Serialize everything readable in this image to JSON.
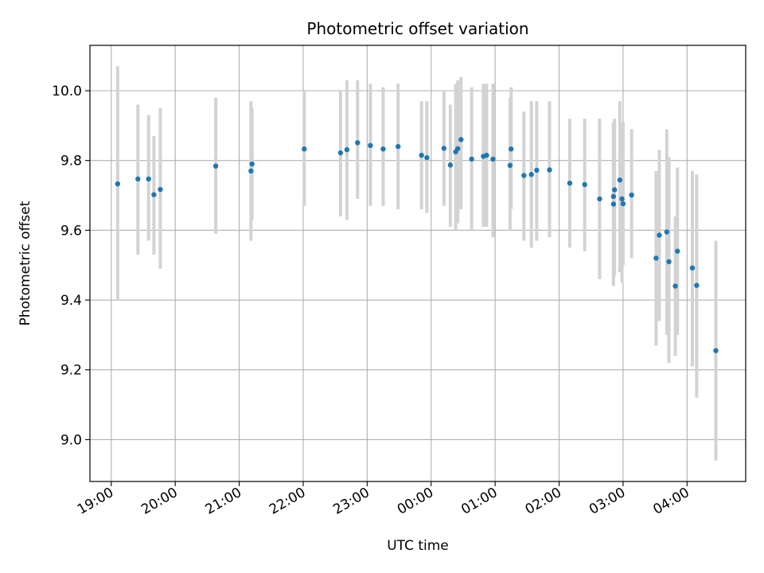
{
  "chart_data": {
    "type": "scatter",
    "title": "Photometric offset variation",
    "xlabel": "UTC time",
    "ylabel": "Photometric offset",
    "grid": true,
    "x_tick_labels": [
      "19:00",
      "20:00",
      "21:00",
      "22:00",
      "23:00",
      "00:00",
      "01:00",
      "02:00",
      "03:00",
      "04:00"
    ],
    "y_tick_labels": [
      "9.0",
      "9.2",
      "9.4",
      "9.6",
      "9.8",
      "10.0"
    ],
    "y_ticks": [
      9.0,
      9.2,
      9.4,
      9.6,
      9.8,
      10.0
    ],
    "xlim": [
      "18:40",
      "04:55"
    ],
    "ylim": [
      8.88,
      10.13
    ],
    "colors": {
      "points": "#1f77b4",
      "error_bars": "#d3d3d3",
      "grid": "#b0b0b0"
    },
    "series": [
      {
        "x": [
          "19:06",
          "19:25",
          "19:35",
          "19:40",
          "19:46",
          "20:38",
          "21:11",
          "21:12",
          "22:01",
          "22:35",
          "22:41",
          "22:51",
          "23:03",
          "23:15",
          "23:29",
          "23:51",
          "23:56",
          "00:12",
          "00:18",
          "00:23",
          "00:25",
          "00:28",
          "00:38",
          "00:49",
          "00:52",
          "00:58",
          "01:14",
          "01:15",
          "01:27",
          "01:34",
          "01:39",
          "01:51",
          "02:10",
          "02:24",
          "02:38",
          "02:51",
          "02:51",
          "02:52",
          "02:57",
          "02:59",
          "03:00",
          "03:08",
          "03:31",
          "03:34",
          "03:41",
          "03:43",
          "03:49",
          "03:51",
          "04:05",
          "04:09",
          "04:27"
        ],
        "y": [
          9.733,
          9.747,
          9.747,
          9.702,
          9.717,
          9.784,
          9.77,
          9.79,
          9.833,
          9.822,
          9.831,
          9.851,
          9.843,
          9.833,
          9.84,
          9.815,
          9.808,
          9.835,
          9.787,
          9.825,
          9.834,
          9.86,
          9.804,
          9.812,
          9.815,
          9.804,
          9.786,
          9.833,
          9.757,
          9.76,
          9.772,
          9.773,
          9.735,
          9.731,
          9.69,
          9.675,
          9.697,
          9.716,
          9.744,
          9.69,
          9.676,
          9.701,
          9.52,
          9.586,
          9.595,
          9.51,
          9.44,
          9.54,
          9.492,
          9.442,
          9.255
        ],
        "y_low": [
          9.4,
          9.53,
          9.57,
          9.53,
          9.49,
          9.59,
          9.57,
          9.63,
          9.67,
          9.64,
          9.63,
          9.69,
          9.67,
          9.67,
          9.66,
          9.66,
          9.65,
          9.67,
          9.61,
          9.6,
          9.62,
          9.66,
          9.6,
          9.61,
          9.61,
          9.58,
          9.6,
          9.66,
          9.57,
          9.55,
          9.57,
          9.58,
          9.55,
          9.54,
          9.46,
          9.44,
          9.45,
          9.47,
          9.48,
          9.45,
          9.5,
          9.52,
          9.27,
          9.34,
          9.3,
          9.22,
          9.24,
          9.3,
          9.21,
          9.12,
          8.94
        ],
        "y_high": [
          10.07,
          9.96,
          9.93,
          9.87,
          9.95,
          9.98,
          9.97,
          9.95,
          10.0,
          10.0,
          10.03,
          10.03,
          10.02,
          10.01,
          10.02,
          9.97,
          9.97,
          10.0,
          9.96,
          10.02,
          10.03,
          10.04,
          10.01,
          10.02,
          10.02,
          10.02,
          9.98,
          10.01,
          9.94,
          9.97,
          9.97,
          9.97,
          9.92,
          9.92,
          9.92,
          9.91,
          9.91,
          9.92,
          9.97,
          9.91,
          9.91,
          9.89,
          9.77,
          9.83,
          9.89,
          9.81,
          9.64,
          9.78,
          9.77,
          9.76,
          9.57
        ]
      }
    ]
  }
}
